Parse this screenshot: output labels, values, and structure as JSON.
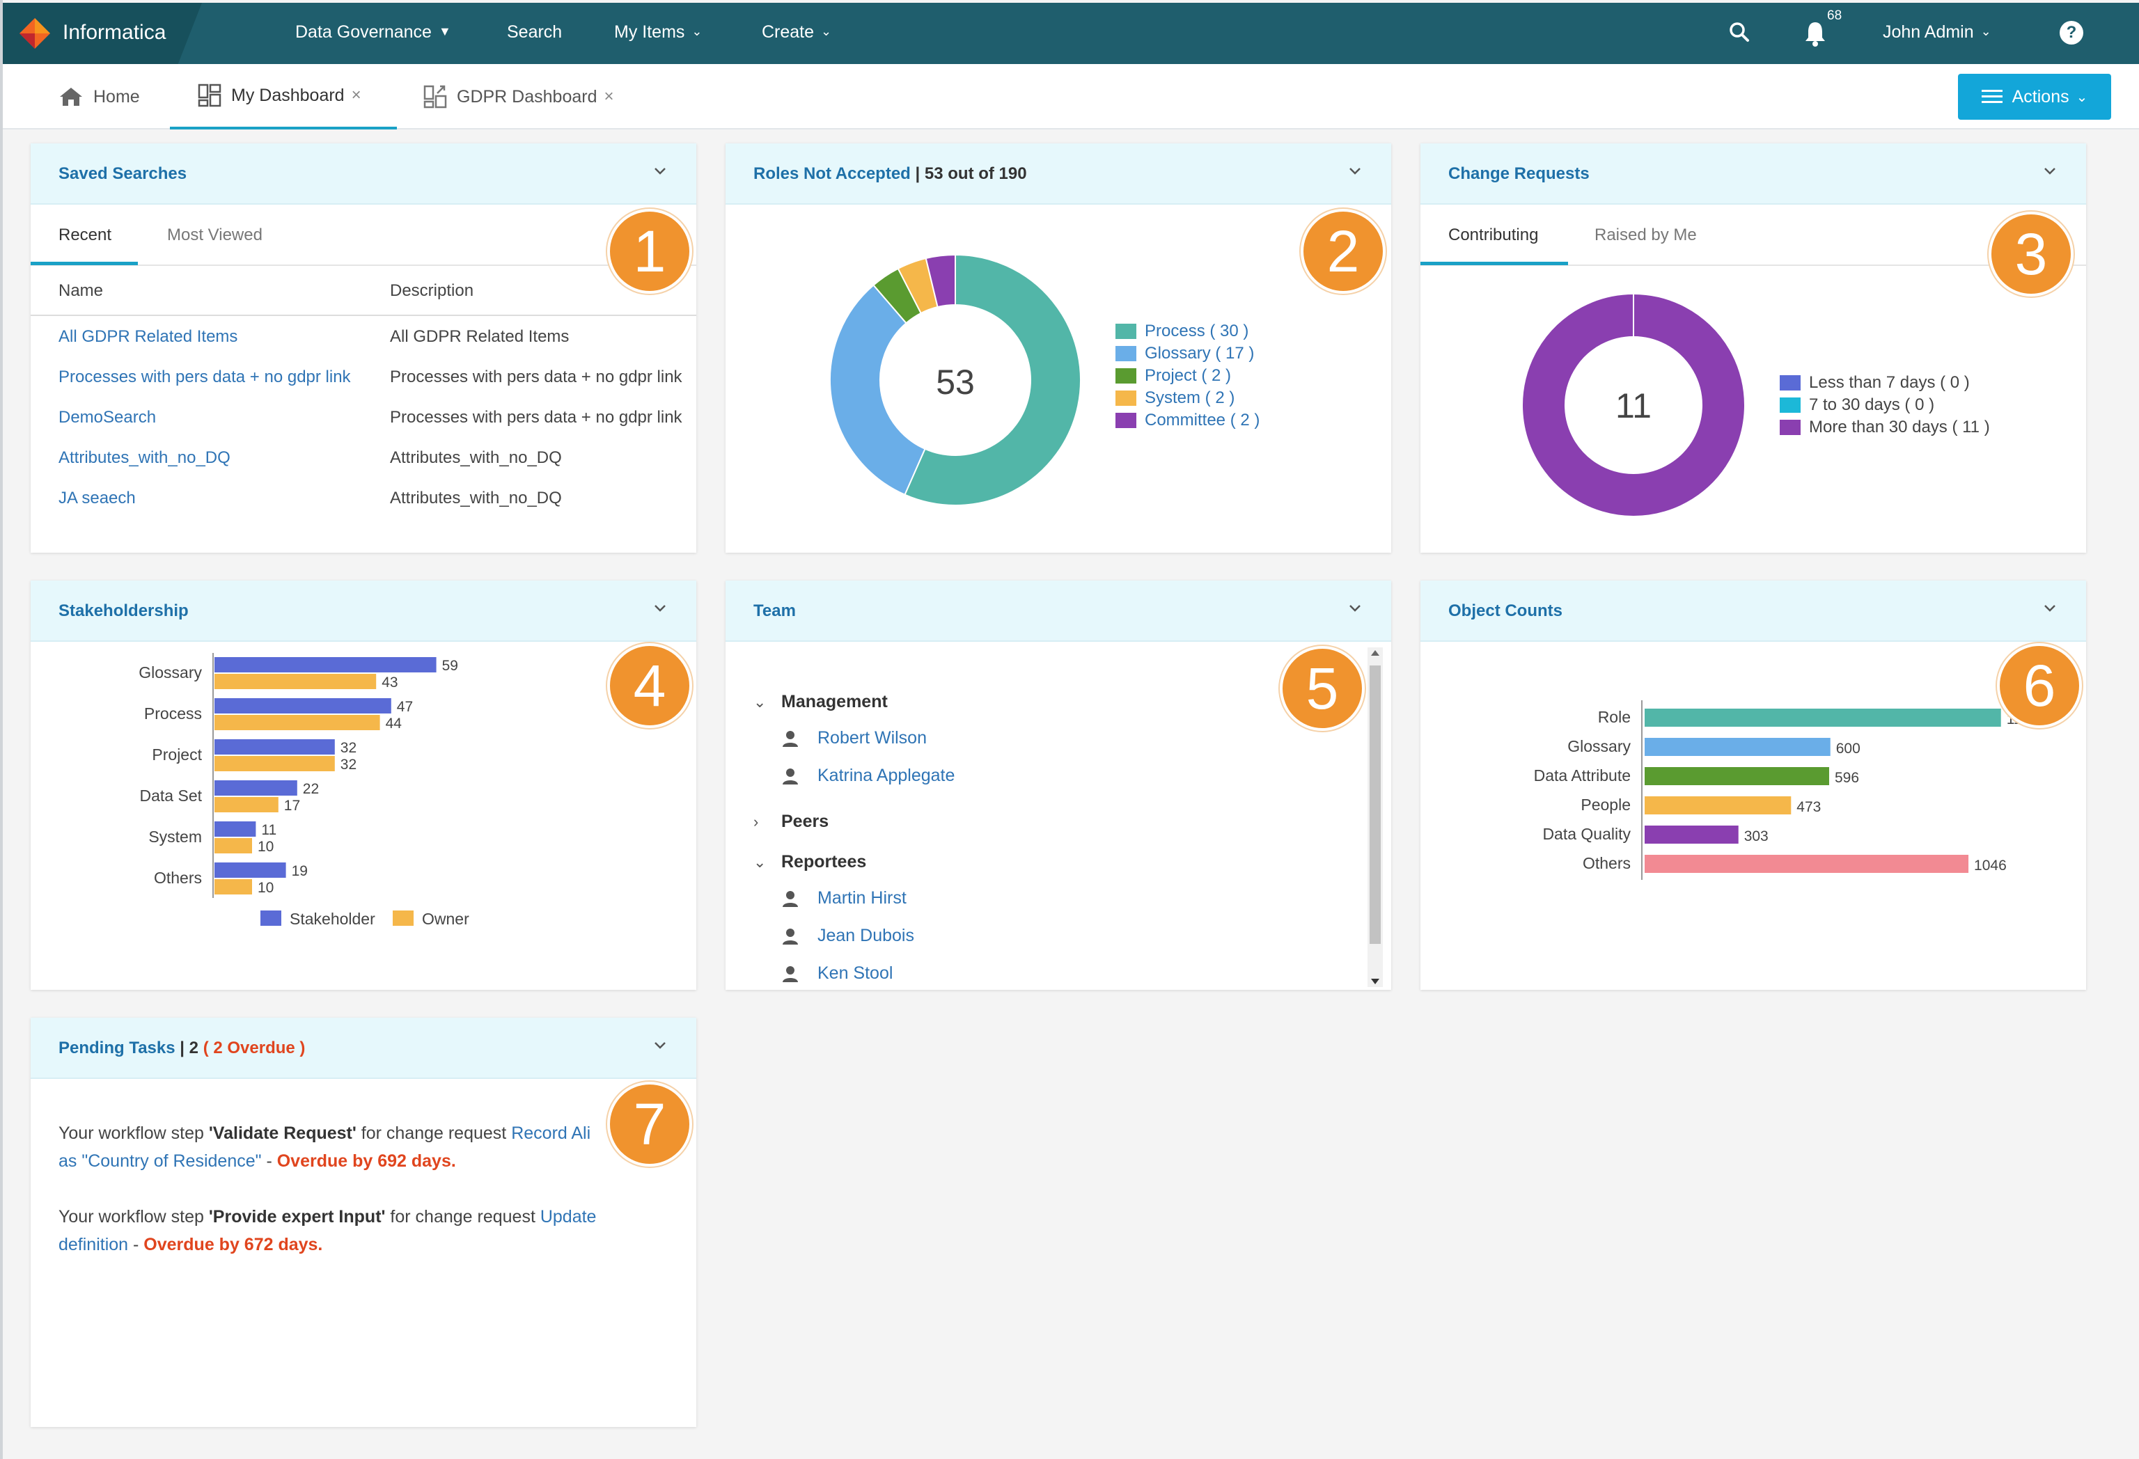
{
  "nav": {
    "brand": "Informatica",
    "items": [
      {
        "label": "Data Governance",
        "dropdown": true
      },
      {
        "label": "Search",
        "dropdown": false
      },
      {
        "label": "My Items",
        "dropdown": true
      },
      {
        "label": "Create",
        "dropdown": true
      }
    ],
    "notifications_count": "68",
    "user": "John Admin",
    "help": "?"
  },
  "tabs": {
    "home": "Home",
    "my_dashboard": "My Dashboard",
    "gdpr_dashboard": "GDPR Dashboard",
    "close": "×",
    "actions": "Actions"
  },
  "badges": [
    "1",
    "2",
    "3",
    "4",
    "5",
    "6",
    "7"
  ],
  "saved_searches": {
    "title": "Saved Searches",
    "tabs": [
      "Recent",
      "Most Viewed"
    ],
    "columns": [
      "Name",
      "Description"
    ],
    "rows": [
      {
        "name": "All GDPR Related Items",
        "description": "All GDPR Related Items"
      },
      {
        "name": "Processes with pers data + no gdpr link",
        "description": "Processes with pers data + no gdpr link"
      },
      {
        "name": "DemoSearch",
        "description": "Processes with pers data + no gdpr link"
      },
      {
        "name": "Attributes_with_no_DQ",
        "description": "Attributes_with_no_DQ"
      },
      {
        "name": "JA seaech",
        "description": "Attributes_with_no_DQ"
      }
    ]
  },
  "roles": {
    "title": "Roles Not Accepted",
    "subtitle": "53 out of 190",
    "center": "53",
    "legend": [
      "Process ( 30 )",
      "Glossary ( 17 )",
      "Project ( 2 )",
      "System ( 2 )",
      "Committee ( 2 )"
    ]
  },
  "change_requests": {
    "title": "Change Requests",
    "tabs": [
      "Contributing",
      "Raised by Me"
    ],
    "center": "11",
    "legend": [
      "Less than 7 days ( 0 )",
      "7 to 30 days ( 0 )",
      "More than 30 days ( 11 )"
    ]
  },
  "stakeholdership": {
    "title": "Stakeholdership",
    "legend": [
      "Stakeholder",
      "Owner"
    ]
  },
  "team": {
    "title": "Team",
    "groups": [
      {
        "label": "Management",
        "expanded": true,
        "members": [
          "Robert Wilson",
          "Katrina Applegate"
        ]
      },
      {
        "label": "Peers",
        "expanded": false,
        "members": []
      },
      {
        "label": "Reportees",
        "expanded": true,
        "members": [
          "Martin Hirst",
          "Jean Dubois",
          "Ken Stool"
        ]
      }
    ]
  },
  "object_counts": {
    "title": "Object Counts"
  },
  "pending_tasks": {
    "title": "Pending Tasks",
    "count": "2",
    "overdue": "( 2 Overdue )",
    "tasks": [
      {
        "prefix": "Your workflow step ",
        "step": "'Validate Request'",
        "middle": " for change request ",
        "link1": "Record Ali",
        "link2": "as \"Country of Residence\"",
        "sep": " - ",
        "overdue": "Overdue by 692 days."
      },
      {
        "prefix": "Your workflow step ",
        "step": "'Provide expert Input'",
        "middle": " for change request ",
        "link1": "Update",
        "link2": "definition",
        "sep": " - ",
        "overdue": "Overdue by 672 days."
      }
    ]
  },
  "chart_data": [
    {
      "type": "pie",
      "title": "Roles Not Accepted",
      "donut": true,
      "categories": [
        "Process",
        "Glossary",
        "Project",
        "System",
        "Committee"
      ],
      "values": [
        30,
        17,
        2,
        2,
        2
      ],
      "colors": [
        "#52b6a8",
        "#6aaee8",
        "#5a9b30",
        "#f5b74a",
        "#8a3fb0"
      ]
    },
    {
      "type": "pie",
      "title": "Change Requests",
      "donut": true,
      "categories": [
        "Less than 7 days",
        "7 to 30 days",
        "More than 30 days"
      ],
      "values": [
        0,
        0,
        11
      ],
      "colors": [
        "#5a6bd6",
        "#1cb8d8",
        "#8a3fb0"
      ]
    },
    {
      "type": "bar",
      "title": "Stakeholdership",
      "orientation": "horizontal",
      "categories": [
        "Glossary",
        "Process",
        "Project",
        "Data Set",
        "System",
        "Others"
      ],
      "series": [
        {
          "name": "Stakeholder",
          "values": [
            59,
            47,
            32,
            22,
            11,
            19
          ],
          "color": "#5a6bd6"
        },
        {
          "name": "Owner",
          "values": [
            43,
            44,
            32,
            17,
            10,
            10
          ],
          "color": "#f5b74a"
        }
      ],
      "legend_position": "bottom"
    },
    {
      "type": "bar",
      "title": "Object Counts",
      "orientation": "horizontal",
      "categories": [
        "Role",
        "Glossary",
        "Data Attribute",
        "People",
        "Data Quality",
        "Others"
      ],
      "values": [
        1151,
        600,
        596,
        473,
        303,
        1046
      ],
      "colors": [
        "#52b6a8",
        "#6aaee8",
        "#5a9b30",
        "#f5b74a",
        "#8a3fb0",
        "#f28a93"
      ]
    }
  ]
}
